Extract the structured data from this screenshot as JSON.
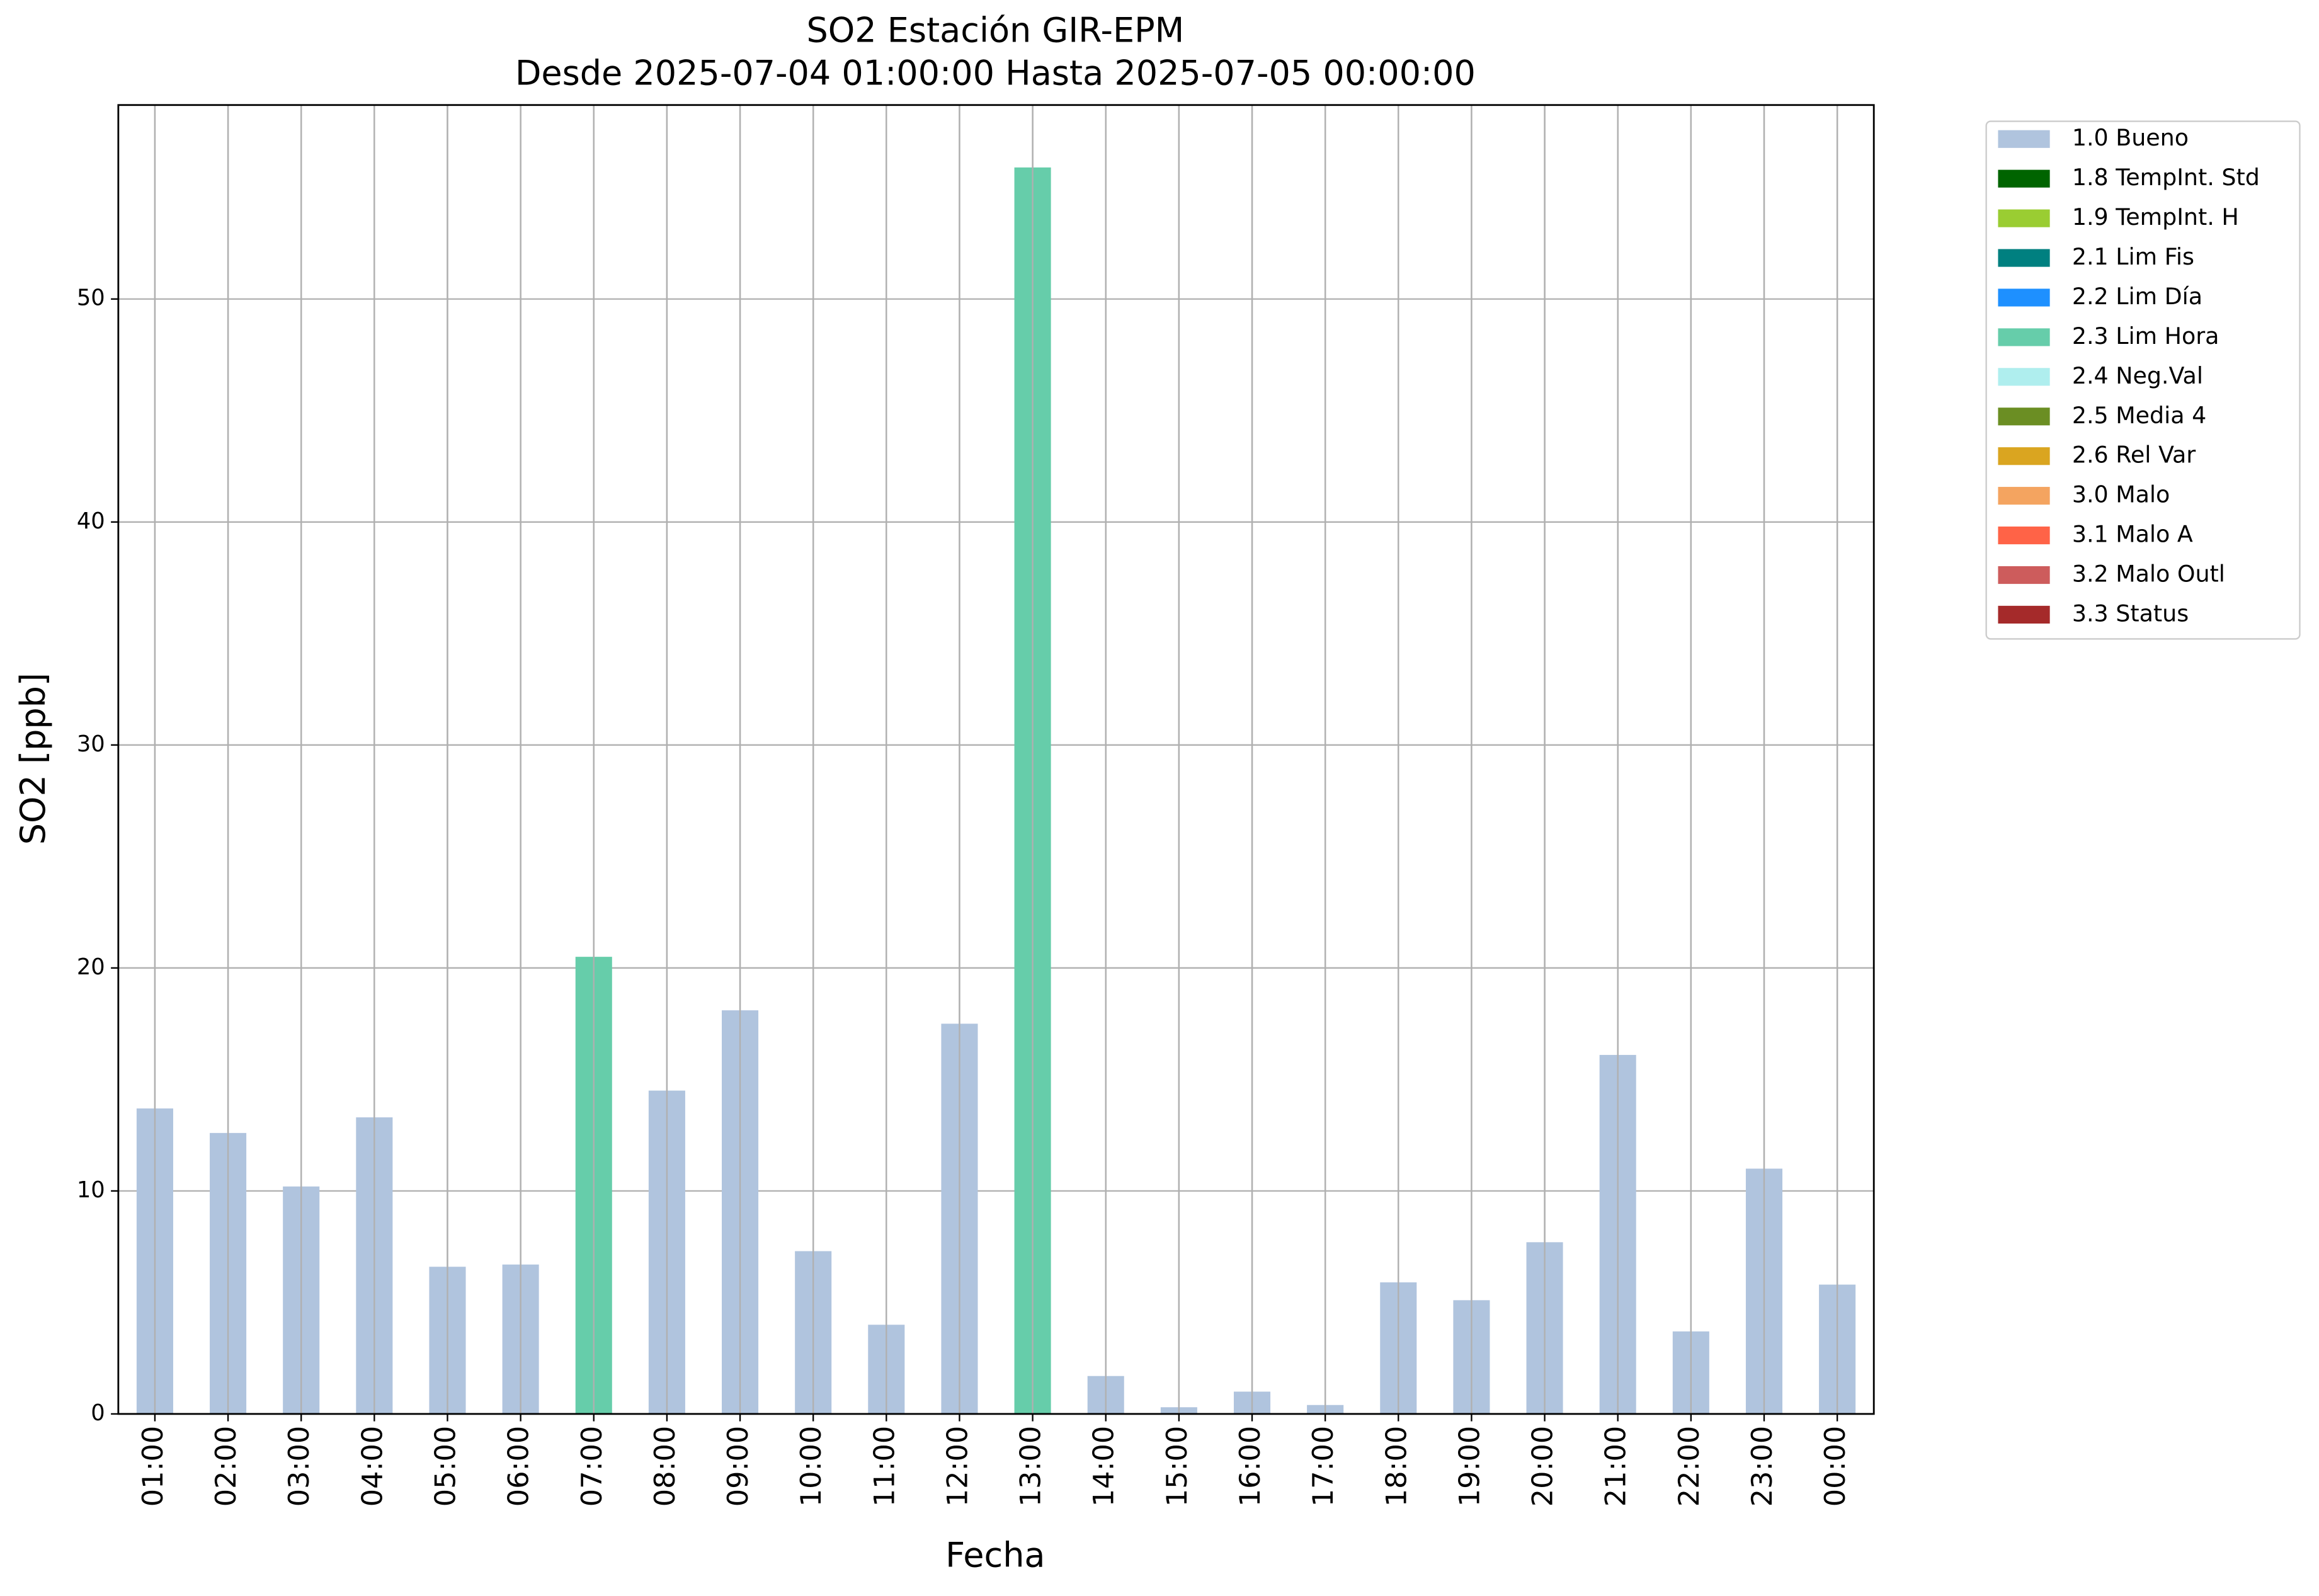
{
  "chart_data": {
    "type": "bar",
    "title": "SO2 Estación GIR-EPM",
    "subtitle": "Desde 2025-07-04 01:00:00 Hasta 2025-07-05 00:00:00",
    "x_label": "Fecha",
    "y_label": "SO2 [ppb]",
    "categories": [
      "01:00",
      "02:00",
      "03:00",
      "04:00",
      "05:00",
      "06:00",
      "07:00",
      "08:00",
      "09:00",
      "10:00",
      "11:00",
      "12:00",
      "13:00",
      "14:00",
      "15:00",
      "16:00",
      "17:00",
      "18:00",
      "19:00",
      "20:00",
      "21:00",
      "22:00",
      "23:00",
      "00:00"
    ],
    "series": [
      {
        "name": "1.0 Bueno",
        "color": "#b0c4de",
        "values": [
          13.7,
          12.6,
          10.2,
          13.3,
          6.6,
          6.7,
          null,
          14.5,
          18.1,
          7.3,
          4.0,
          17.5,
          null,
          1.7,
          0.3,
          1.0,
          0.4,
          5.9,
          5.1,
          7.7,
          16.1,
          3.7,
          11.0,
          5.8
        ]
      },
      {
        "name": "1.8 TempInt. Std",
        "color": "#006400",
        "values": [
          null,
          null,
          null,
          null,
          null,
          null,
          null,
          null,
          null,
          null,
          null,
          null,
          null,
          null,
          null,
          null,
          null,
          null,
          null,
          null,
          null,
          null,
          null,
          null
        ]
      },
      {
        "name": "1.9 TempInt. H",
        "color": "#9acd32",
        "values": [
          null,
          null,
          null,
          null,
          null,
          null,
          null,
          null,
          null,
          null,
          null,
          null,
          null,
          null,
          null,
          null,
          null,
          null,
          null,
          null,
          null,
          null,
          null,
          null
        ]
      },
      {
        "name": "2.1 Lim Fis",
        "color": "#008080",
        "values": [
          null,
          null,
          null,
          null,
          null,
          null,
          null,
          null,
          null,
          null,
          null,
          null,
          null,
          null,
          null,
          null,
          null,
          null,
          null,
          null,
          null,
          null,
          null,
          null
        ]
      },
      {
        "name": "2.2 Lim Día",
        "color": "#1e90ff",
        "values": [
          null,
          null,
          null,
          null,
          null,
          null,
          null,
          null,
          null,
          null,
          null,
          null,
          null,
          null,
          null,
          null,
          null,
          null,
          null,
          null,
          null,
          null,
          null,
          null
        ]
      },
      {
        "name": "2.3 Lim Hora",
        "color": "#66cdaa",
        "values": [
          null,
          null,
          null,
          null,
          null,
          null,
          20.5,
          null,
          null,
          null,
          null,
          null,
          55.9,
          null,
          null,
          null,
          null,
          null,
          null,
          null,
          null,
          null,
          null,
          null
        ]
      },
      {
        "name": "2.4 Neg.Val",
        "color": "#afeeee",
        "values": [
          null,
          null,
          null,
          null,
          null,
          null,
          null,
          null,
          null,
          null,
          null,
          null,
          null,
          null,
          null,
          null,
          null,
          null,
          null,
          null,
          null,
          null,
          null,
          null
        ]
      },
      {
        "name": "2.5 Media 4",
        "color": "#6b8e23",
        "values": [
          null,
          null,
          null,
          null,
          null,
          null,
          null,
          null,
          null,
          null,
          null,
          null,
          null,
          null,
          null,
          null,
          null,
          null,
          null,
          null,
          null,
          null,
          null,
          null
        ]
      },
      {
        "name": "2.6 Rel Var",
        "color": "#daa520",
        "values": [
          null,
          null,
          null,
          null,
          null,
          null,
          null,
          null,
          null,
          null,
          null,
          null,
          null,
          null,
          null,
          null,
          null,
          null,
          null,
          null,
          null,
          null,
          null,
          null
        ]
      },
      {
        "name": "3.0 Malo",
        "color": "#f4a460",
        "values": [
          null,
          null,
          null,
          null,
          null,
          null,
          null,
          null,
          null,
          null,
          null,
          null,
          null,
          null,
          null,
          null,
          null,
          null,
          null,
          null,
          null,
          null,
          null,
          null
        ]
      },
      {
        "name": "3.1 Malo A",
        "color": "#ff6347",
        "values": [
          null,
          null,
          null,
          null,
          null,
          null,
          null,
          null,
          null,
          null,
          null,
          null,
          null,
          null,
          null,
          null,
          null,
          null,
          null,
          null,
          null,
          null,
          null,
          null
        ]
      },
      {
        "name": "3.2 Malo Outl",
        "color": "#cd5c5c",
        "values": [
          null,
          null,
          null,
          null,
          null,
          null,
          null,
          null,
          null,
          null,
          null,
          null,
          null,
          null,
          null,
          null,
          null,
          null,
          null,
          null,
          null,
          null,
          null,
          null
        ]
      },
      {
        "name": "3.3 Status",
        "color": "#a52a2a",
        "values": [
          null,
          null,
          null,
          null,
          null,
          null,
          null,
          null,
          null,
          null,
          null,
          null,
          null,
          null,
          null,
          null,
          null,
          null,
          null,
          null,
          null,
          null,
          null,
          null
        ]
      }
    ],
    "ylim": [
      0,
      58.7
    ],
    "yticks": [
      0,
      10,
      20,
      30,
      40,
      50
    ],
    "grid": true,
    "legend": "outside-right"
  }
}
